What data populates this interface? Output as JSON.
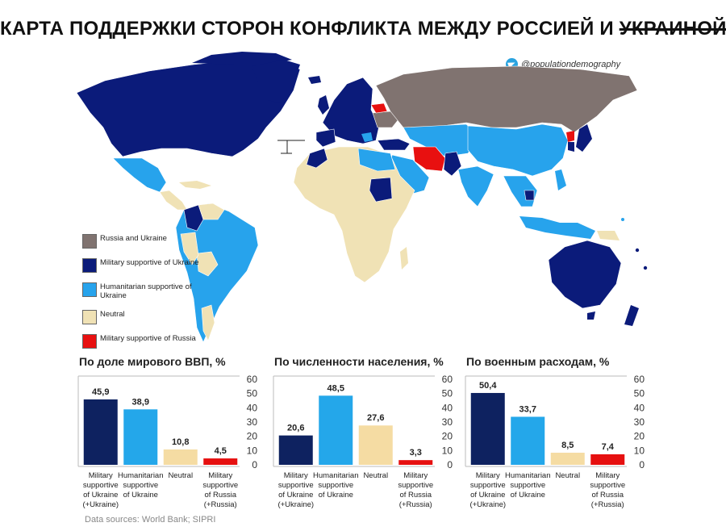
{
  "title": {
    "main": "КАРТА ПОДДЕРЖКИ СТОРОН КОНФЛИКТА МЕЖДУ РОССИЕЙ И ",
    "struck": "УКРАИНОЙ"
  },
  "handle": "@populationdemography",
  "colors": {
    "russia_ukraine": "#807370",
    "military_ukraine": "#0b1b7a",
    "humanitarian_ukraine": "#27a3ec",
    "neutral": "#f0e2b5",
    "military_russia": "#e81010"
  },
  "legend": {
    "items": [
      {
        "label": "Russia and Ukraine",
        "color": "#807370"
      },
      {
        "label": "Military supportive of Ukraine",
        "color": "#0b1b7a"
      },
      {
        "label": "Humanitarian supportive of Ukraine",
        "color": "#27a3ec"
      },
      {
        "label": "Neutral",
        "color": "#f0e2b5"
      },
      {
        "label": "Military supportive of Russia",
        "color": "#e81010"
      }
    ]
  },
  "chart_data": [
    {
      "type": "bar",
      "title": "По доле мирового ВВП, %",
      "categories": [
        "Military supportive of Ukraine (+Ukraine)",
        "Humanitarian supportive of Ukraine",
        "Neutral",
        "Military supportive of Russia (+Russia)"
      ],
      "values": [
        45.9,
        38.9,
        10.8,
        4.5
      ],
      "value_labels": [
        "45,9",
        "38,9",
        "10,8",
        "4,5"
      ],
      "colors": [
        "#0e2260",
        "#24a7ea",
        "#f5dca3",
        "#e61010"
      ],
      "yticks": [
        0,
        10,
        20,
        30,
        40,
        50,
        60
      ],
      "ylim": [
        0,
        60
      ]
    },
    {
      "type": "bar",
      "title": "По численности населения, %",
      "categories": [
        "Military supportive of Ukraine (+Ukraine)",
        "Humanitarian supportive of Ukraine",
        "Neutral",
        "Military supportive of Russia (+Russia)"
      ],
      "values": [
        20.6,
        48.5,
        27.6,
        3.3
      ],
      "value_labels": [
        "20,6",
        "48,5",
        "27,6",
        "3,3"
      ],
      "colors": [
        "#0e2260",
        "#24a7ea",
        "#f5dca3",
        "#e61010"
      ],
      "yticks": [
        0,
        10,
        20,
        30,
        40,
        50,
        60
      ],
      "ylim": [
        0,
        60
      ]
    },
    {
      "type": "bar",
      "title": "По военным расходам, %",
      "categories": [
        "Military supportive of Ukraine (+Ukraine)",
        "Humanitarian supportive of Ukraine",
        "Neutral",
        "Military supportive of Russia (+Russia)"
      ],
      "values": [
        50.4,
        33.7,
        8.5,
        7.4
      ],
      "value_labels": [
        "50,4",
        "33,7",
        "8,5",
        "7,4"
      ],
      "colors": [
        "#0e2260",
        "#24a7ea",
        "#f5dca3",
        "#e61010"
      ],
      "yticks": [
        0,
        10,
        20,
        30,
        40,
        50,
        60
      ],
      "ylim": [
        0,
        60
      ]
    }
  ],
  "category_lines": [
    [
      "Military",
      "supportive",
      "of Ukraine",
      "(+Ukraine)"
    ],
    [
      "Humanitarian",
      "supportive",
      "of Ukraine"
    ],
    [
      "Neutral"
    ],
    [
      "Military",
      "supportive",
      "of Russia",
      "(+Russia)"
    ]
  ],
  "source": "Data sources: World Bank; SIPRI"
}
